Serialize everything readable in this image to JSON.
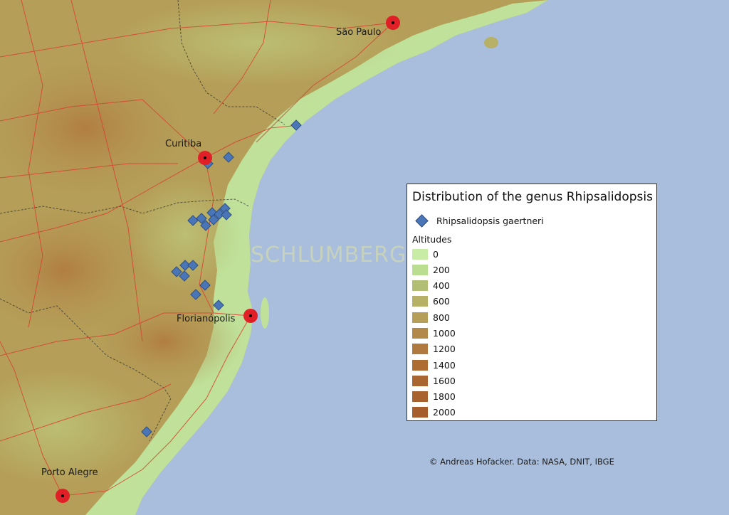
{
  "map": {
    "title": "Distribution of the genus Rhipsalidopsis",
    "watermark": "SCHLUMBERGERA.NET",
    "credit": "© Andreas Hofacker. Data: NASA, DNIT, IBGE",
    "colors": {
      "ocean": "#a8bedc",
      "lowland": "#bfe19a",
      "highland": "#b8864a",
      "roads": "#d94030",
      "city_marker": "#e01f26",
      "species_marker": "#4a76b8"
    },
    "cities": [
      {
        "name": "São Paulo"
      },
      {
        "name": "Curitiba"
      },
      {
        "name": "Florianópolis"
      },
      {
        "name": "Porto Alegre"
      }
    ],
    "legend": {
      "species_label": "Rhipsalidopsis gaertneri",
      "altitudes_title": "Altitudes",
      "altitudes": [
        {
          "label": "0",
          "color": "#c8eca6"
        },
        {
          "label": "200",
          "color": "#b9de8f"
        },
        {
          "label": "400",
          "color": "#b1be74"
        },
        {
          "label": "600",
          "color": "#b6b166"
        },
        {
          "label": "800",
          "color": "#b59f58"
        },
        {
          "label": "1000",
          "color": "#b3894a"
        },
        {
          "label": "1200",
          "color": "#b07a3e"
        },
        {
          "label": "1400",
          "color": "#ac6c32"
        },
        {
          "label": "1600",
          "color": "#aa6630"
        },
        {
          "label": "1800",
          "color": "#a8622e"
        },
        {
          "label": "2000",
          "color": "#a55e2c"
        }
      ]
    }
  }
}
